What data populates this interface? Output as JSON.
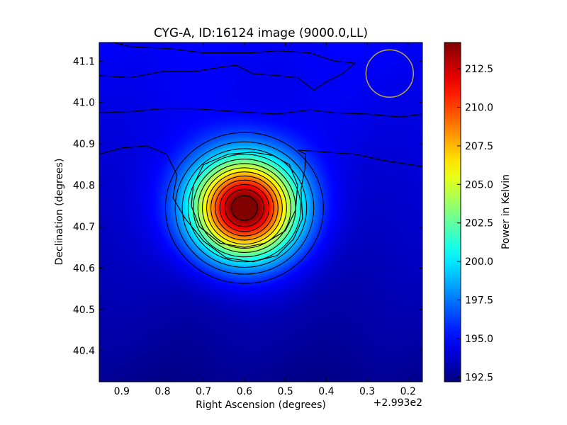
{
  "chart_data": {
    "type": "heatmap",
    "title": "CYG-A, ID:16124 image (9000.0,LL)",
    "xlabel": "Right Ascension (degrees)",
    "ylabel": "Declination (degrees)",
    "x_offset_label": "+2.993e2",
    "xlim": [
      0.955,
      0.165
    ],
    "ylim": [
      40.325,
      41.145
    ],
    "x_ticks": [
      0.9,
      0.8,
      0.7,
      0.6,
      0.5,
      0.4,
      0.3,
      0.2
    ],
    "x_tick_labels": [
      "0.9",
      "0.8",
      "0.7",
      "0.6",
      "0.5",
      "0.4",
      "0.3",
      "0.2"
    ],
    "y_ticks": [
      40.4,
      40.5,
      40.6,
      40.7,
      40.8,
      40.9,
      41.0,
      41.1
    ],
    "y_tick_labels": [
      "40.4",
      "40.5",
      "40.6",
      "40.7",
      "40.8",
      "40.9",
      "41.0",
      "41.1"
    ],
    "colorbar": {
      "label": "Power in Kelvin",
      "range": [
        192.2,
        214.2
      ],
      "ticks": [
        192.5,
        195.0,
        197.5,
        200.0,
        202.5,
        205.0,
        207.5,
        210.0,
        212.5
      ],
      "tick_labels": [
        "192.5",
        "195.0",
        "197.5",
        "200.0",
        "202.5",
        "205.0",
        "207.5",
        "210.0",
        "212.5"
      ],
      "colormap": "jet"
    },
    "source": {
      "ra_offset": 0.6,
      "dec": 40.745,
      "peak": 214.0,
      "sigma_ra": 0.09,
      "sigma_dec": 0.085
    },
    "background": {
      "min": 192.5,
      "max": 194.9
    },
    "beam_circle": {
      "ra_offset": 0.245,
      "dec": 41.07,
      "radius_deg": 0.058,
      "color": "#b8a64a"
    },
    "contour_color": "#000000"
  }
}
